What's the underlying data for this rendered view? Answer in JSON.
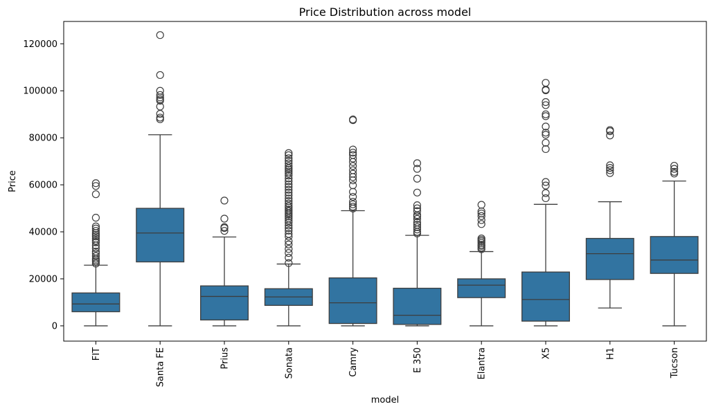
{
  "chart_data": {
    "type": "box",
    "title": "Price Distribution across model",
    "xlabel": "model",
    "ylabel": "Price",
    "ylim": [
      -6500,
      129500
    ],
    "yticks": [
      0,
      20000,
      40000,
      60000,
      80000,
      100000,
      120000
    ],
    "ytick_labels": [
      "0",
      "20000",
      "40000",
      "60000",
      "80000",
      "100000",
      "120000"
    ],
    "box_color": "#3274a1",
    "line_color": "#3d3d3d",
    "grid": false,
    "legend": "none",
    "categories": [
      "FIT",
      "Santa FE",
      "Prius",
      "Sonata",
      "Camry",
      "E 350",
      "Elantra",
      "X5",
      "H1",
      "Tucson"
    ],
    "boxes": [
      {
        "min": 0,
        "q1": 6000,
        "median": 9300,
        "q3": 14000,
        "max": 25800,
        "outliers": [
          26500,
          27300,
          27900,
          28600,
          29700,
          30800,
          31600,
          33000,
          34200,
          35500,
          36200,
          37100,
          38000,
          38700,
          39500,
          40400,
          41400,
          42300,
          46000,
          56000,
          59500,
          60700
        ]
      },
      {
        "min": 0,
        "q1": 27200,
        "median": 39500,
        "q3": 50000,
        "max": 81300,
        "outliers": [
          87900,
          88600,
          90200,
          93300,
          95800,
          96400,
          97200,
          98200,
          100000,
          106700,
          123700
        ]
      },
      {
        "min": 0,
        "q1": 2500,
        "median": 12500,
        "q3": 17000,
        "max": 37800,
        "outliers": [
          40400,
          41600,
          42000,
          45600,
          53300
        ]
      },
      {
        "min": 0,
        "q1": 8700,
        "median": 12300,
        "q3": 15800,
        "max": 26300,
        "outliers": [
          26700,
          29000,
          31000,
          32700,
          34600,
          36000,
          38000,
          39100,
          40500,
          41600,
          42700,
          43900,
          44800,
          45700,
          46500,
          47300,
          48000,
          48800,
          49500,
          50300,
          51000,
          52000,
          53100,
          54200,
          55500,
          56700,
          57900,
          59100,
          60200,
          61500,
          62700,
          63900,
          64800,
          65600,
          66400,
          67100,
          68000,
          69100,
          70200,
          71300,
          72600,
          73500
        ]
      },
      {
        "min": 0,
        "q1": 1000,
        "median": 9800,
        "q3": 20400,
        "max": 49000,
        "outliers": [
          49900,
          50700,
          51700,
          52800,
          54900,
          57000,
          59800,
          61900,
          63300,
          64700,
          66200,
          68000,
          69700,
          71200,
          72700,
          73700,
          75000,
          87500,
          87800
        ]
      },
      {
        "min": 0,
        "q1": 600,
        "median": 4500,
        "q3": 16000,
        "max": 38500,
        "outliers": [
          39300,
          40000,
          41000,
          42000,
          43000,
          44000,
          45500,
          46600,
          47200,
          48800,
          50000,
          51300,
          56700,
          62600,
          66800,
          69200
        ]
      },
      {
        "min": 0,
        "q1": 12000,
        "median": 17300,
        "q3": 20000,
        "max": 31600,
        "outliers": [
          32600,
          33300,
          34000,
          34500,
          35300,
          36000,
          36600,
          37200,
          43300,
          45000,
          46700,
          47800,
          48700,
          51500
        ]
      },
      {
        "min": 0,
        "q1": 2000,
        "median": 11200,
        "q3": 22900,
        "max": 51700,
        "outliers": [
          54300,
          56500,
          59700,
          61200,
          75200,
          77900,
          81300,
          82200,
          84800,
          89200,
          90000,
          93900,
          95200,
          100200,
          100500,
          103400
        ]
      },
      {
        "min": 7600,
        "q1": 19700,
        "median": 30700,
        "q3": 37200,
        "max": 52800,
        "outliers": [
          65000,
          66200,
          67200,
          68300,
          81000,
          82800,
          83300
        ]
      },
      {
        "min": 0,
        "q1": 22300,
        "median": 28000,
        "q3": 38000,
        "max": 61600,
        "outliers": [
          64800,
          65500,
          66800,
          68100
        ]
      }
    ]
  }
}
